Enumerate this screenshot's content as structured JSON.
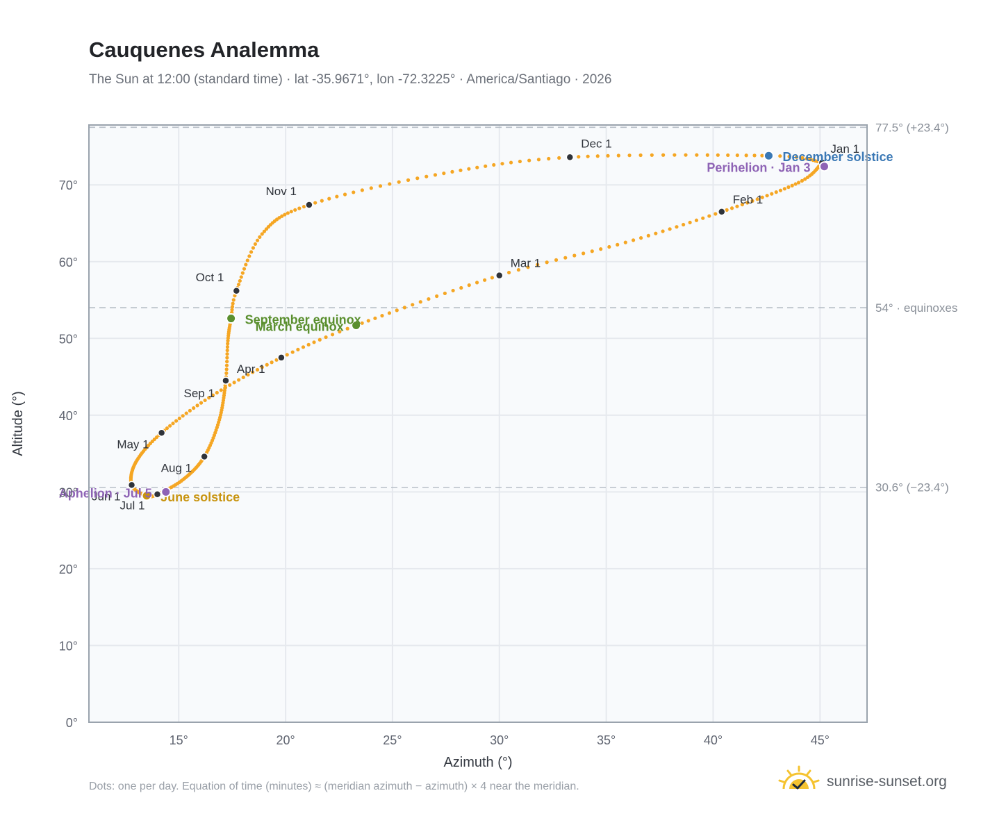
{
  "header": {
    "title": "Cauquenes Analemma",
    "subtitle": "The Sun at 12:00 (standard time) · lat -35.9671°, lon -72.3225° · America/Santiago · 2026"
  },
  "footer": {
    "note": "Dots: one per day. Equation of time (minutes) ≈ (meridian azimuth − azimuth) × 4 near the meridian.",
    "brand": "sunrise-sunset.org"
  },
  "colors": {
    "curve": "#f5a623",
    "month_marker": "#2f333a",
    "equinox": "#5a8f2e",
    "december_solstice": "#3a78b5",
    "june_solstice": "#c8940f",
    "apsis": "#8e63b5",
    "plot_bg": "#f8fafc",
    "grid": "#e6e9ee",
    "frame": "#9aa3ad",
    "reference_line": "#b7bfc7"
  },
  "chart_data": {
    "type": "scatter",
    "title": "Cauquenes Analemma",
    "xlabel": "Azimuth (°)",
    "ylabel": "Altitude (°)",
    "xlim": [
      10.8,
      47.2
    ],
    "ylim": [
      0,
      77.8
    ],
    "x_ticks": [
      15,
      20,
      25,
      30,
      35,
      40,
      45
    ],
    "x_tick_labels": [
      "15°",
      "20°",
      "25°",
      "30°",
      "35°",
      "40°",
      "45°"
    ],
    "y_ticks": [
      0,
      10,
      20,
      30,
      40,
      50,
      60,
      70
    ],
    "y_tick_labels": [
      "0°",
      "10°",
      "20°",
      "30°",
      "40°",
      "50°",
      "60°",
      "70°"
    ],
    "grid": true,
    "reference_lines": [
      {
        "y": 77.5,
        "label": "77.5° (+23.4°)"
      },
      {
        "y": 54,
        "label": "54° · equinoxes"
      },
      {
        "y": 30.6,
        "label": "30.6° (−23.4°)"
      }
    ],
    "series": [
      {
        "points_per_day": 1,
        "knots": [
          {
            "day": 1,
            "az": 45.1,
            "alt": 72.9
          },
          {
            "day": 15,
            "az": 44.0,
            "alt": 70.3
          },
          {
            "day": 32,
            "az": 40.4,
            "alt": 66.5
          },
          {
            "day": 46,
            "az": 35.9,
            "alt": 62.5
          },
          {
            "day": 60,
            "az": 30.0,
            "alt": 58.2
          },
          {
            "day": 79,
            "az": 23.3,
            "alt": 51.7
          },
          {
            "day": 91,
            "az": 19.8,
            "alt": 47.5
          },
          {
            "day": 106,
            "az": 16.6,
            "alt": 42.6
          },
          {
            "day": 121,
            "az": 14.2,
            "alt": 37.7
          },
          {
            "day": 136,
            "az": 13.0,
            "alt": 33.9
          },
          {
            "day": 152,
            "az": 12.8,
            "alt": 30.9
          },
          {
            "day": 172,
            "az": 13.5,
            "alt": 29.5
          },
          {
            "day": 182,
            "az": 14.0,
            "alt": 29.7
          },
          {
            "day": 196,
            "az": 15.2,
            "alt": 31.6
          },
          {
            "day": 213,
            "az": 16.2,
            "alt": 34.6
          },
          {
            "day": 228,
            "az": 16.9,
            "alt": 39.4
          },
          {
            "day": 244,
            "az": 17.2,
            "alt": 44.5
          },
          {
            "day": 255,
            "az": 17.3,
            "alt": 49.7
          },
          {
            "day": 266,
            "az": 17.45,
            "alt": 52.6
          },
          {
            "day": 274,
            "az": 17.7,
            "alt": 56.2
          },
          {
            "day": 289,
            "az": 18.9,
            "alt": 63.6
          },
          {
            "day": 305,
            "az": 21.1,
            "alt": 67.4
          },
          {
            "day": 320,
            "az": 27.0,
            "alt": 71.3
          },
          {
            "day": 335,
            "az": 33.3,
            "alt": 73.6
          },
          {
            "day": 355,
            "az": 42.6,
            "alt": 73.8
          },
          {
            "day": 365,
            "az": 45.0,
            "alt": 73.0
          }
        ]
      }
    ],
    "month_markers": [
      {
        "label": "Jan 1",
        "az": 45.1,
        "alt": 72.9
      },
      {
        "label": "Feb 1",
        "az": 40.4,
        "alt": 66.5
      },
      {
        "label": "Mar 1",
        "az": 30.0,
        "alt": 58.2
      },
      {
        "label": "Apr 1",
        "az": 19.8,
        "alt": 47.5
      },
      {
        "label": "May 1",
        "az": 14.2,
        "alt": 37.7
      },
      {
        "label": "Jun 1",
        "az": 12.8,
        "alt": 30.9
      },
      {
        "label": "Jul 1",
        "az": 14.0,
        "alt": 29.7
      },
      {
        "label": "Aug 1",
        "az": 16.2,
        "alt": 34.6
      },
      {
        "label": "Sep 1",
        "az": 17.2,
        "alt": 44.5
      },
      {
        "label": "Oct 1",
        "az": 17.7,
        "alt": 56.2
      },
      {
        "label": "Nov 1",
        "az": 21.1,
        "alt": 67.4
      },
      {
        "label": "Dec 1",
        "az": 33.3,
        "alt": 73.6
      }
    ],
    "events": [
      {
        "label": "March equinox",
        "az": 23.3,
        "alt": 51.7,
        "kind": "equinox"
      },
      {
        "label": "September equinox",
        "az": 17.45,
        "alt": 52.6,
        "kind": "equinox"
      },
      {
        "label": "December solstice",
        "az": 42.6,
        "alt": 73.8,
        "kind": "december_solstice"
      },
      {
        "label": "June solstice",
        "az": 13.5,
        "alt": 29.5,
        "kind": "june_solstice"
      },
      {
        "label": "Perihelion · Jan 3",
        "az": 45.2,
        "alt": 72.4,
        "kind": "apsis"
      },
      {
        "label": "Aphelion · Jul 5",
        "az": 14.4,
        "alt": 30.0,
        "kind": "apsis"
      }
    ]
  }
}
